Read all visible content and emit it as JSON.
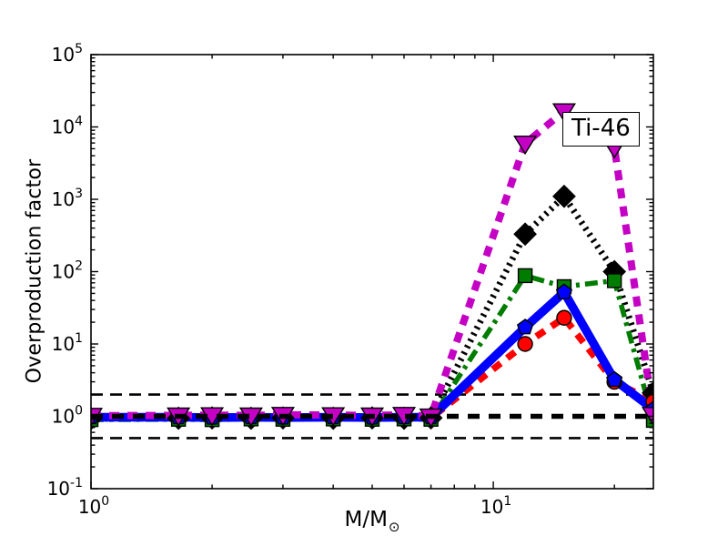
{
  "chart_data": {
    "type": "line",
    "title": "",
    "annotation": "Ti-46",
    "xlabel": {
      "main": "M/M",
      "sub": "⊙"
    },
    "ylabel": "Overproduction factor",
    "xscale": "log",
    "yscale": "log",
    "xlim": [
      1,
      25
    ],
    "ylim": [
      0.1,
      100000
    ],
    "grid": false,
    "legend": "none",
    "x_tick_exponents": [
      0,
      1
    ],
    "y_tick_exponents": [
      -1,
      0,
      1,
      2,
      3,
      4,
      5
    ],
    "x": [
      1,
      1.65,
      2,
      2.5,
      3,
      4,
      5,
      6,
      7,
      12,
      15,
      20,
      25
    ],
    "series": [
      {
        "name": "black dotted line, diamond markers",
        "color": "#000000",
        "line_style": "dotted",
        "line_width": 7,
        "marker": "diamond",
        "marker_size": 17,
        "values": [
          0.93,
          0.94,
          0.95,
          0.94,
          0.95,
          0.94,
          0.95,
          0.94,
          0.95,
          330,
          1100,
          100,
          2.1
        ]
      },
      {
        "name": "red dashed line, circle markers",
        "color": "#ff0000",
        "line_style": "dashed",
        "line_width": 7.5,
        "marker": "circle",
        "marker_size": 16,
        "values": [
          0.95,
          0.96,
          0.95,
          0.96,
          0.95,
          0.96,
          0.95,
          0.96,
          0.95,
          10,
          23,
          3.0,
          1.6
        ]
      },
      {
        "name": "green dash-dot line, square markers",
        "color": "#007d00",
        "line_style": "dashdot",
        "line_width": 5.5,
        "marker": "square",
        "marker_size": 15,
        "values": [
          0.9,
          0.91,
          0.9,
          0.92,
          0.91,
          0.92,
          0.91,
          0.92,
          0.91,
          88,
          62,
          75,
          0.88
        ]
      },
      {
        "name": "blue solid line, pentagon markers",
        "color": "#0000ff",
        "line_style": "solid",
        "line_width": 9.5,
        "marker": "pentagon",
        "marker_size": 15,
        "values": [
          0.97,
          0.97,
          0.96,
          0.97,
          0.96,
          0.97,
          0.96,
          0.97,
          0.97,
          17,
          52,
          3.2,
          1.25
        ]
      },
      {
        "name": "magenta dashed line, triangle-down markers",
        "color": "#c400c4",
        "line_style": "dashed",
        "line_width": 8,
        "marker": "triangle-down",
        "marker_size": 19,
        "values": [
          1.02,
          1.03,
          1.04,
          1.03,
          1.05,
          1.04,
          1.03,
          1.05,
          1.0,
          5900,
          16500,
          5200,
          1.05
        ]
      }
    ],
    "reference_lines": [
      {
        "y": 2.0,
        "style": "dashed",
        "weight": "thin"
      },
      {
        "y": 0.5,
        "style": "dashed",
        "weight": "thin"
      },
      {
        "y": 1.0,
        "style": "dashed",
        "weight": "thick"
      }
    ]
  }
}
